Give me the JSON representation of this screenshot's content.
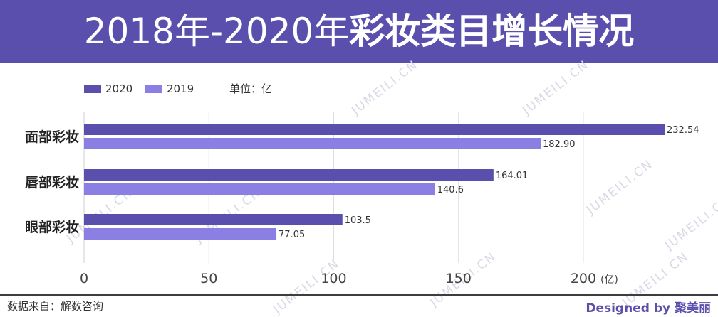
{
  "header": {
    "title_years": "2018年-2020年",
    "title_bold": "彩妆类目增长情况"
  },
  "legend": {
    "unit_label": "单位：亿"
  },
  "watermark": "JUMEILI.CN",
  "footer": {
    "source": "数据来自：解数咨询",
    "credit": "Designed by 聚美丽"
  },
  "chart_data": {
    "type": "bar",
    "orientation": "horizontal",
    "categories": [
      "面部彩妆",
      "唇部彩妆",
      "眼部彩妆"
    ],
    "series": [
      {
        "name": "2020",
        "color": "#5b4fae",
        "values": [
          232.54,
          164.01,
          103.5
        ],
        "labels": [
          "232.54",
          "164.01",
          "103.5"
        ]
      },
      {
        "name": "2019",
        "color": "#8b7fe3",
        "values": [
          182.9,
          140.6,
          77.05
        ],
        "labels": [
          "182.90",
          "140.6",
          "77.05"
        ]
      }
    ],
    "xlim": [
      0,
      232.54
    ],
    "xticks": [
      0,
      50,
      100,
      150,
      200
    ],
    "xtick_labels": [
      "0",
      "50",
      "100",
      "150",
      "200"
    ],
    "x_unit_label": "(亿)",
    "grid": true,
    "legend_position": "top-left"
  }
}
